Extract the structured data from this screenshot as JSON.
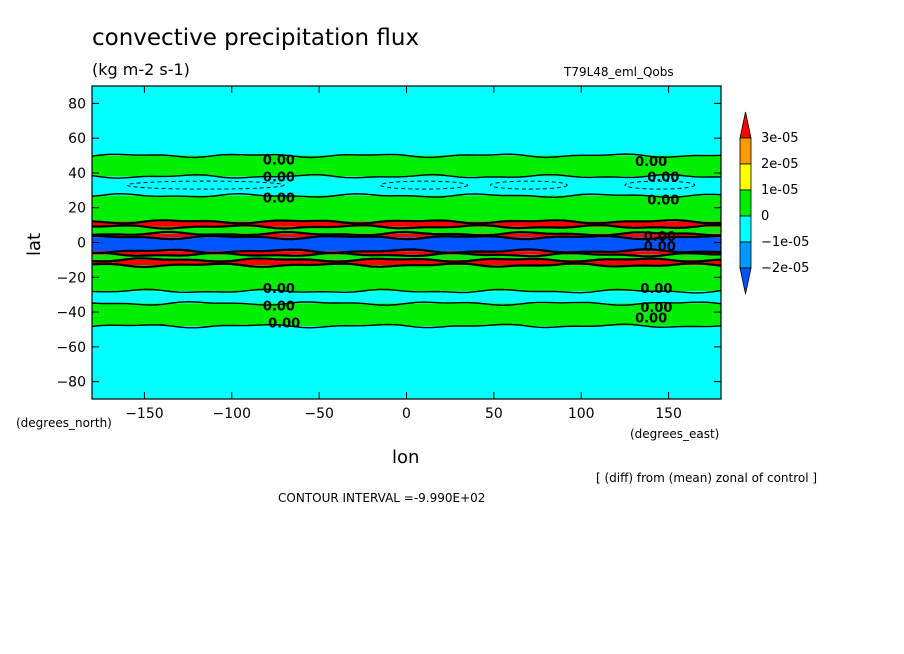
{
  "chart_data": {
    "type": "heatmap",
    "title": "convective precipitation flux",
    "units": "(kg m-2 s-1)",
    "run_label": "T79L48_eml_Qobs",
    "xlabel": "lon",
    "xunits": "(degrees_east)",
    "ylabel": "lat",
    "yunits": "(degrees_north)",
    "xlim": [
      -180,
      180
    ],
    "ylim": [
      -90,
      90
    ],
    "xticks": [
      -150,
      -100,
      -50,
      0,
      50,
      100,
      150
    ],
    "yticks": [
      -80,
      -60,
      -40,
      -20,
      0,
      20,
      40,
      60,
      80
    ],
    "note": "[ (diff) from (mean) zonal of control ]",
    "contour_interval": "CONTOUR INTERVAL =-9.990E+02",
    "colorbar": {
      "labels": [
        "3e-05",
        "2e-05",
        "1e-05",
        "0",
        "-1e-05",
        "-2e-05"
      ],
      "colors": [
        "#ff0000",
        "#ff9900",
        "#ffff00",
        "#00ee00",
        "#00ffff",
        "#0099ff",
        "#0055ff"
      ]
    },
    "lat_bands": [
      {
        "lat": [
          50,
          90
        ],
        "value": -5e-06,
        "color": "#00ffff"
      },
      {
        "lat": [
          38,
          50
        ],
        "value": 5e-06,
        "color": "#00ee00"
      },
      {
        "lat": [
          27,
          38
        ],
        "value": -5e-06,
        "color": "#00ffff"
      },
      {
        "lat": [
          12,
          27
        ],
        "value": 5e-06,
        "color": "#00ee00"
      },
      {
        "lat": [
          9,
          12
        ],
        "value": 3.5e-05,
        "color": "#ff0000"
      },
      {
        "lat": [
          5,
          9
        ],
        "value": 5e-06,
        "color": "#00ee00"
      },
      {
        "lat": [
          3,
          5
        ],
        "value": 3.5e-05,
        "color": "#ff0000"
      },
      {
        "lat": [
          -5,
          3
        ],
        "value": -2.5e-05,
        "color": "#0055ff"
      },
      {
        "lat": [
          -7,
          -5
        ],
        "value": 3.5e-05,
        "color": "#ff0000"
      },
      {
        "lat": [
          -10,
          -7
        ],
        "value": 5e-06,
        "color": "#00ee00"
      },
      {
        "lat": [
          -13,
          -10
        ],
        "value": 3.5e-05,
        "color": "#ff0000"
      },
      {
        "lat": [
          -28,
          -13
        ],
        "value": 5e-06,
        "color": "#00ee00"
      },
      {
        "lat": [
          -35,
          -28
        ],
        "value": -5e-06,
        "color": "#00ffff"
      },
      {
        "lat": [
          -48,
          -35
        ],
        "value": 5e-06,
        "color": "#00ee00"
      },
      {
        "lat": [
          -90,
          -48
        ],
        "value": -5e-06,
        "color": "#00ffff"
      }
    ],
    "contour_labels": [
      {
        "text": "0.00",
        "lon": -73,
        "lat": 47
      },
      {
        "text": "0.00",
        "lon": 140,
        "lat": 46
      },
      {
        "text": "0.00",
        "lon": -73,
        "lat": 37
      },
      {
        "text": "0.00",
        "lon": 147,
        "lat": 37
      },
      {
        "text": "0.00",
        "lon": -73,
        "lat": 25
      },
      {
        "text": "0.00",
        "lon": 147,
        "lat": 24
      },
      {
        "text": "0.00",
        "lon": 145,
        "lat": 3
      },
      {
        "text": "0.00",
        "lon": 145,
        "lat": -3
      },
      {
        "text": "0.00",
        "lon": -73,
        "lat": -27
      },
      {
        "text": "0.00",
        "lon": 143,
        "lat": -27
      },
      {
        "text": "0.00",
        "lon": -73,
        "lat": -37
      },
      {
        "text": "0.00",
        "lon": 143,
        "lat": -38
      },
      {
        "text": "0.00",
        "lon": 140,
        "lat": -44
      },
      {
        "text": "0.00",
        "lon": -70,
        "lat": -47
      }
    ]
  }
}
